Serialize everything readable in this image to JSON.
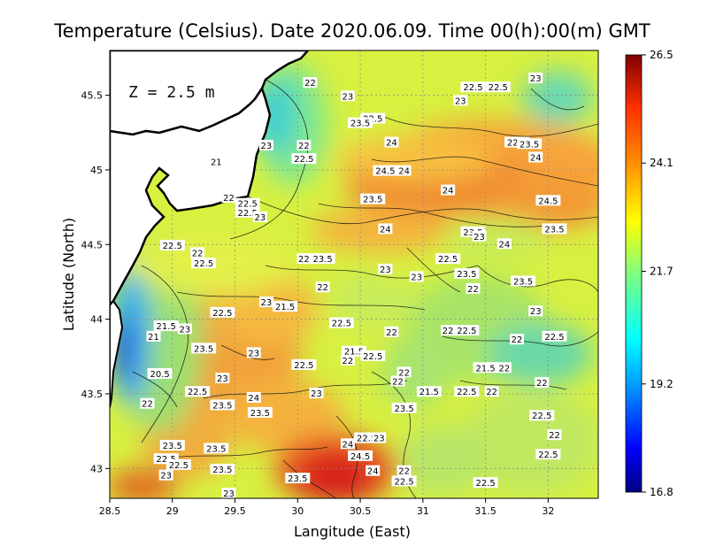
{
  "title": "Temperature (Celsius). Date 2020.06.09. Time 00(h):00(m)  GMT",
  "depth_label": "Z = 2.5 m",
  "chart_data": {
    "type": "heatmap",
    "title": "Temperature (Celsius). Date 2020.06.09. Time 00(h):00(m)  GMT",
    "xlabel": "Langitude (East)",
    "ylabel": "Latitude (North)",
    "xlim": [
      28.5,
      32.4
    ],
    "ylim": [
      42.8,
      45.8
    ],
    "xticks": [
      28.5,
      29,
      29.5,
      30,
      30.5,
      31,
      31.5,
      32
    ],
    "xtick_labels": [
      "28.5",
      "29",
      "29.5",
      "30",
      "30.5",
      "31",
      "31.5",
      "32"
    ],
    "yticks": [
      43,
      43.5,
      44,
      44.5,
      45,
      45.5
    ],
    "ytick_labels": [
      "43",
      "43.5",
      "44",
      "44.5",
      "45",
      "45.5"
    ],
    "grid": true,
    "colorbar": {
      "min": 16.8,
      "max": 26.5,
      "ticks": [
        "26.5",
        "24.1",
        "21.7",
        "19.2",
        "16.8"
      ],
      "tick_values": [
        26.5,
        24.1,
        21.7,
        19.2,
        16.8
      ],
      "colors": [
        "#000080",
        "#0000ff",
        "#00a0ff",
        "#00ffff",
        "#7fff7f",
        "#ffff00",
        "#ff9000",
        "#ff3000",
        "#800000"
      ]
    },
    "contour_labels": [
      {
        "lon": 29.6,
        "lat": 44.77,
        "text": "22.5"
      },
      {
        "lon": 30.1,
        "lat": 45.58,
        "text": "22"
      },
      {
        "lon": 30.4,
        "lat": 45.49,
        "text": "23"
      },
      {
        "lon": 31.4,
        "lat": 45.55,
        "text": "22.5"
      },
      {
        "lon": 31.6,
        "lat": 45.55,
        "text": "22.5"
      },
      {
        "lon": 31.3,
        "lat": 45.46,
        "text": "23"
      },
      {
        "lon": 31.9,
        "lat": 45.61,
        "text": "23"
      },
      {
        "lon": 30.6,
        "lat": 45.34,
        "text": "22.5"
      },
      {
        "lon": 30.5,
        "lat": 45.31,
        "text": "23.5"
      },
      {
        "lon": 29.75,
        "lat": 45.16,
        "text": "23"
      },
      {
        "lon": 30.05,
        "lat": 45.16,
        "text": "22"
      },
      {
        "lon": 30.05,
        "lat": 45.07,
        "text": "22.5"
      },
      {
        "lon": 30.75,
        "lat": 45.18,
        "text": "24"
      },
      {
        "lon": 31.75,
        "lat": 45.18,
        "text": "22.5"
      },
      {
        "lon": 31.85,
        "lat": 45.17,
        "text": "23.5"
      },
      {
        "lon": 31.9,
        "lat": 45.08,
        "text": "24"
      },
      {
        "lon": 29.35,
        "lat": 45.05,
        "text": "21"
      },
      {
        "lon": 30.7,
        "lat": 44.99,
        "text": "24.5"
      },
      {
        "lon": 30.85,
        "lat": 44.99,
        "text": "24"
      },
      {
        "lon": 31.2,
        "lat": 44.86,
        "text": "24"
      },
      {
        "lon": 29.45,
        "lat": 44.81,
        "text": "22"
      },
      {
        "lon": 29.6,
        "lat": 44.71,
        "text": "22.5"
      },
      {
        "lon": 29.0,
        "lat": 44.49,
        "text": "22.5"
      },
      {
        "lon": 29.2,
        "lat": 44.44,
        "text": "22"
      },
      {
        "lon": 29.25,
        "lat": 44.37,
        "text": "22.5"
      },
      {
        "lon": 29.7,
        "lat": 44.68,
        "text": "23"
      },
      {
        "lon": 30.6,
        "lat": 44.8,
        "text": "23.5"
      },
      {
        "lon": 30.7,
        "lat": 44.6,
        "text": "24"
      },
      {
        "lon": 31.4,
        "lat": 44.58,
        "text": "23.5"
      },
      {
        "lon": 31.45,
        "lat": 44.55,
        "text": "23"
      },
      {
        "lon": 31.65,
        "lat": 44.5,
        "text": "24"
      },
      {
        "lon": 32.05,
        "lat": 44.6,
        "text": "23.5"
      },
      {
        "lon": 32.0,
        "lat": 44.79,
        "text": "24.5"
      },
      {
        "lon": 30.05,
        "lat": 44.4,
        "text": "22"
      },
      {
        "lon": 30.2,
        "lat": 44.4,
        "text": "23.5"
      },
      {
        "lon": 30.7,
        "lat": 44.33,
        "text": "23"
      },
      {
        "lon": 30.95,
        "lat": 44.28,
        "text": "23"
      },
      {
        "lon": 31.2,
        "lat": 44.4,
        "text": "22.5"
      },
      {
        "lon": 31.35,
        "lat": 44.3,
        "text": "23.5"
      },
      {
        "lon": 31.4,
        "lat": 44.2,
        "text": "22"
      },
      {
        "lon": 31.8,
        "lat": 44.25,
        "text": "23.5"
      },
      {
        "lon": 30.2,
        "lat": 44.21,
        "text": "22"
      },
      {
        "lon": 29.75,
        "lat": 44.11,
        "text": "23"
      },
      {
        "lon": 29.9,
        "lat": 44.08,
        "text": "21.5"
      },
      {
        "lon": 29.4,
        "lat": 44.04,
        "text": "22.5"
      },
      {
        "lon": 28.95,
        "lat": 43.95,
        "text": "21.5"
      },
      {
        "lon": 29.1,
        "lat": 43.93,
        "text": "23"
      },
      {
        "lon": 28.85,
        "lat": 43.88,
        "text": "21"
      },
      {
        "lon": 29.25,
        "lat": 43.8,
        "text": "23.5"
      },
      {
        "lon": 29.65,
        "lat": 43.77,
        "text": "23"
      },
      {
        "lon": 30.35,
        "lat": 43.97,
        "text": "22.5"
      },
      {
        "lon": 30.75,
        "lat": 43.91,
        "text": "22"
      },
      {
        "lon": 31.2,
        "lat": 43.92,
        "text": "22"
      },
      {
        "lon": 31.35,
        "lat": 43.92,
        "text": "22.5"
      },
      {
        "lon": 31.9,
        "lat": 44.05,
        "text": "23"
      },
      {
        "lon": 32.05,
        "lat": 43.88,
        "text": "22.5"
      },
      {
        "lon": 31.75,
        "lat": 43.86,
        "text": "22"
      },
      {
        "lon": 30.45,
        "lat": 43.78,
        "text": "21.5"
      },
      {
        "lon": 30.6,
        "lat": 43.75,
        "text": "22.5"
      },
      {
        "lon": 30.4,
        "lat": 43.72,
        "text": "22"
      },
      {
        "lon": 30.05,
        "lat": 43.69,
        "text": "22.5"
      },
      {
        "lon": 30.85,
        "lat": 43.64,
        "text": "22"
      },
      {
        "lon": 29.4,
        "lat": 43.6,
        "text": "23"
      },
      {
        "lon": 29.2,
        "lat": 43.51,
        "text": "22.5"
      },
      {
        "lon": 28.9,
        "lat": 43.63,
        "text": "20.5"
      },
      {
        "lon": 29.4,
        "lat": 43.42,
        "text": "23.5"
      },
      {
        "lon": 29.65,
        "lat": 43.47,
        "text": "24"
      },
      {
        "lon": 29.7,
        "lat": 43.37,
        "text": "23.5"
      },
      {
        "lon": 30.15,
        "lat": 43.5,
        "text": "23"
      },
      {
        "lon": 30.8,
        "lat": 43.58,
        "text": "22"
      },
      {
        "lon": 31.05,
        "lat": 43.51,
        "text": "21.5"
      },
      {
        "lon": 31.35,
        "lat": 43.51,
        "text": "22.5"
      },
      {
        "lon": 31.55,
        "lat": 43.51,
        "text": "22"
      },
      {
        "lon": 31.5,
        "lat": 43.67,
        "text": "21.5"
      },
      {
        "lon": 31.65,
        "lat": 43.67,
        "text": "22"
      },
      {
        "lon": 31.95,
        "lat": 43.57,
        "text": "22"
      },
      {
        "lon": 31.95,
        "lat": 43.35,
        "text": "22.5"
      },
      {
        "lon": 32.05,
        "lat": 43.22,
        "text": "22"
      },
      {
        "lon": 32.0,
        "lat": 43.09,
        "text": "22.5"
      },
      {
        "lon": 30.85,
        "lat": 43.4,
        "text": "23.5"
      },
      {
        "lon": 28.8,
        "lat": 43.43,
        "text": "22"
      },
      {
        "lon": 30.4,
        "lat": 43.16,
        "text": "24"
      },
      {
        "lon": 30.55,
        "lat": 43.2,
        "text": "22.5"
      },
      {
        "lon": 30.65,
        "lat": 43.2,
        "text": "23"
      },
      {
        "lon": 30.5,
        "lat": 43.08,
        "text": "24.5"
      },
      {
        "lon": 30.6,
        "lat": 42.98,
        "text": "24"
      },
      {
        "lon": 29.35,
        "lat": 43.13,
        "text": "23.5"
      },
      {
        "lon": 29.0,
        "lat": 43.15,
        "text": "23.5"
      },
      {
        "lon": 28.95,
        "lat": 43.06,
        "text": "22.5"
      },
      {
        "lon": 29.4,
        "lat": 42.99,
        "text": "23.5"
      },
      {
        "lon": 29.05,
        "lat": 43.02,
        "text": "22.5"
      },
      {
        "lon": 28.95,
        "lat": 42.95,
        "text": "23"
      },
      {
        "lon": 30.0,
        "lat": 42.93,
        "text": "23.5"
      },
      {
        "lon": 29.45,
        "lat": 42.83,
        "text": "23"
      },
      {
        "lon": 30.85,
        "lat": 42.98,
        "text": "22"
      },
      {
        "lon": 30.85,
        "lat": 42.91,
        "text": "22.5"
      },
      {
        "lon": 31.5,
        "lat": 42.9,
        "text": "22.5"
      }
    ]
  }
}
